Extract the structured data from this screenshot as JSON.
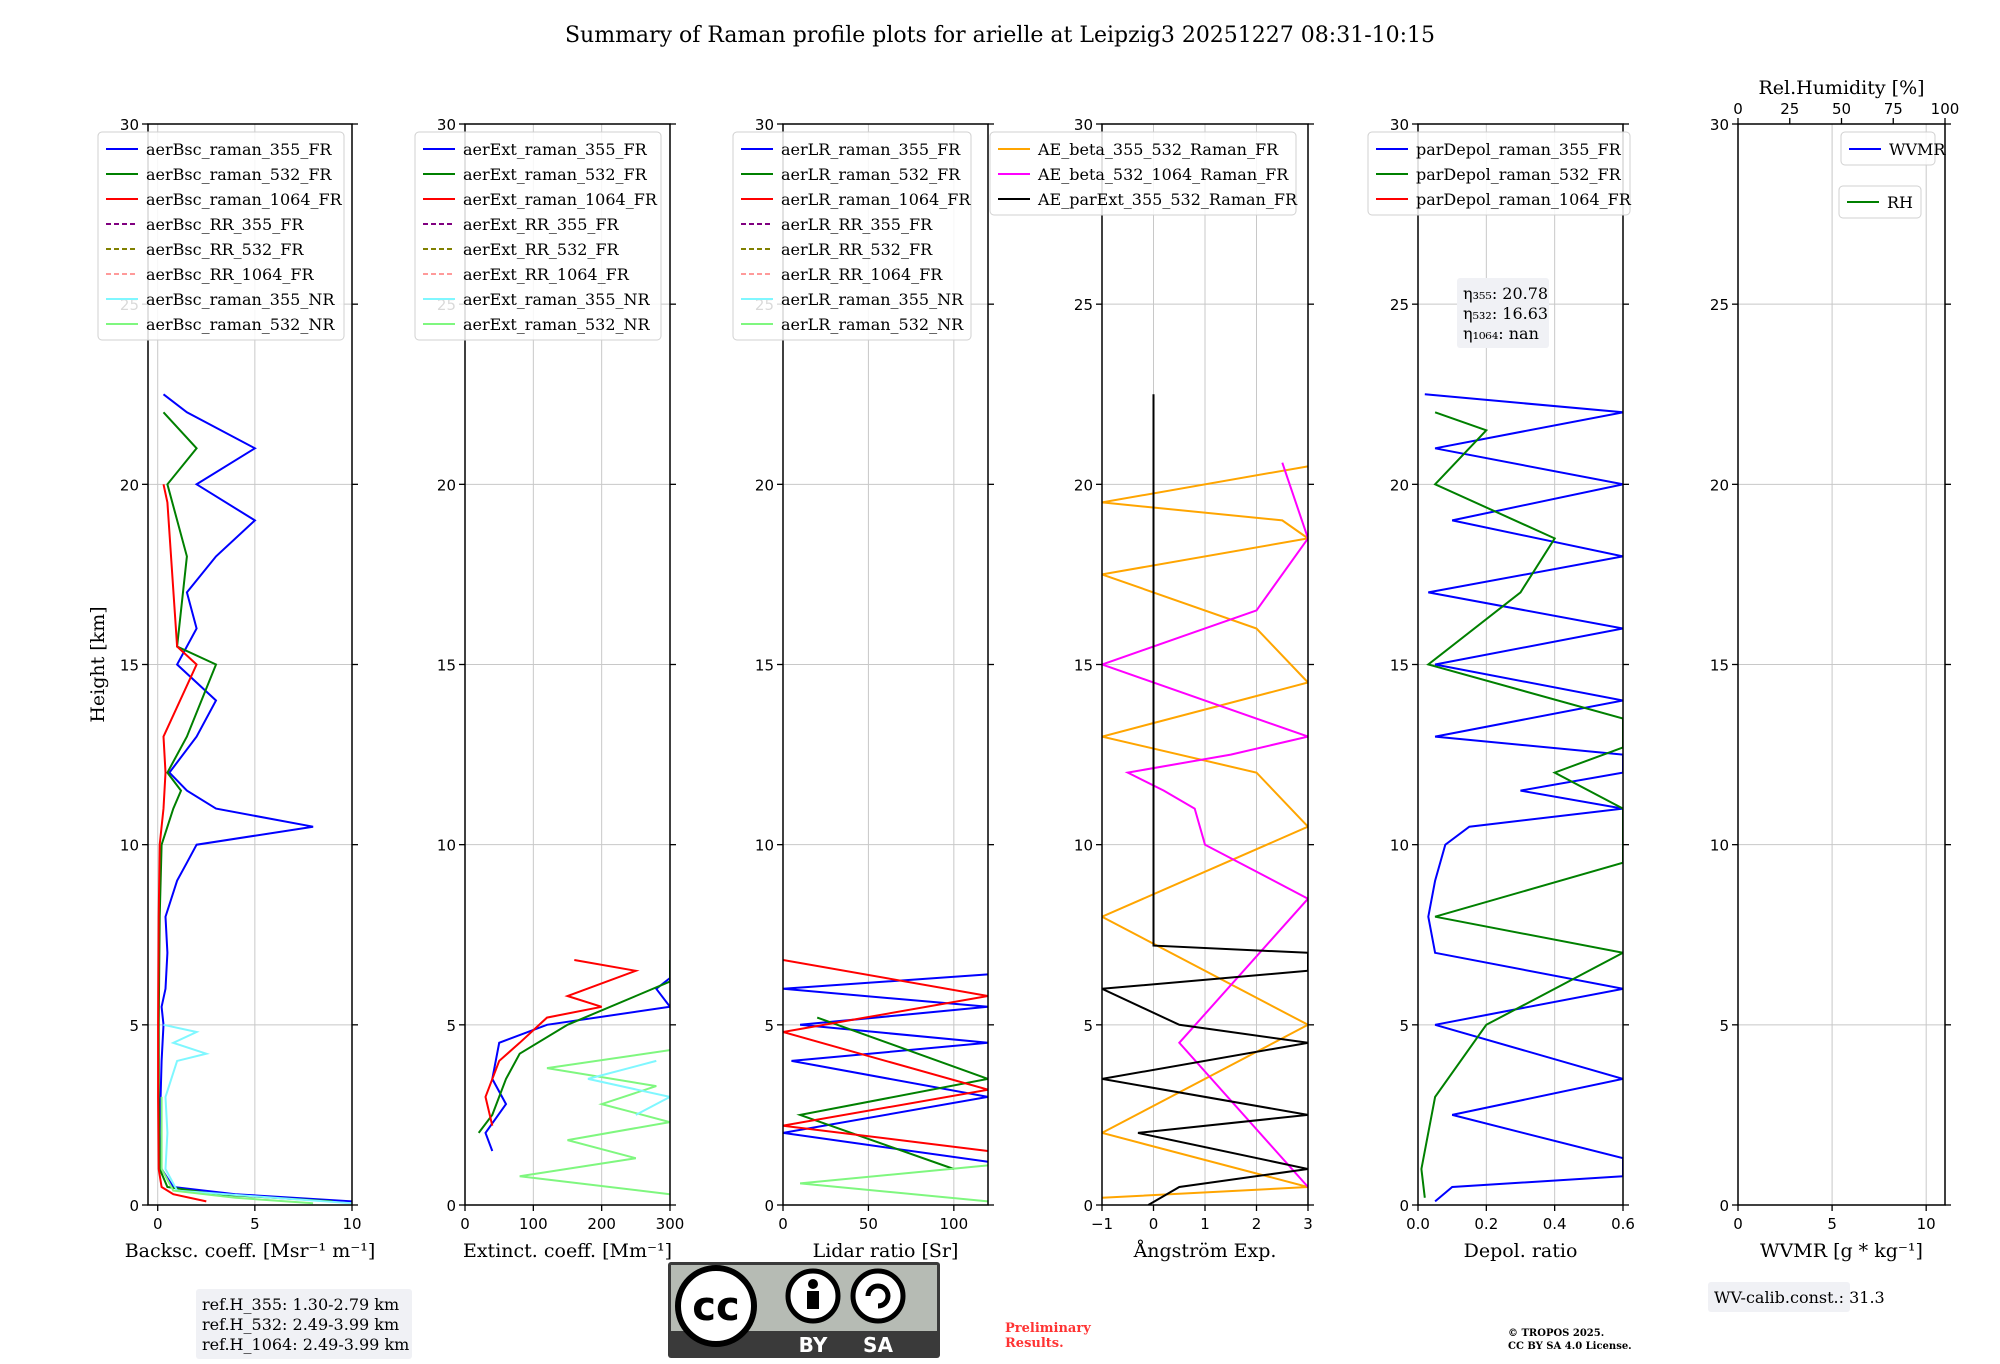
{
  "title": "Summary of Raman profile plots for arielle at Leipzig3 20251227 08:31-10:15",
  "colors": {
    "blue": "#0000ff",
    "green": "#008000",
    "red": "#ff0000",
    "purple": "#800080",
    "olive": "#808000",
    "salmon": "#ff9a9a",
    "cyan": "#7ff7ff",
    "lightgreen": "#7ff77f",
    "orange": "#ffa500",
    "magenta": "#ff00ff",
    "black": "#000000",
    "grid": "#c8c8c8",
    "preliminary": "#ff3333",
    "box": "#f0f1f5"
  },
  "chart_data": [
    {
      "id": "bsc",
      "type": "line",
      "xlabel": "Backsc. coeff. [Msr⁻¹ m⁻¹]",
      "ylabel": "Height [km]",
      "xlim": [
        -0.5,
        10
      ],
      "ylim": [
        0,
        30
      ],
      "xticks": [
        0,
        5,
        10
      ],
      "yticks": [
        0,
        5,
        10,
        15,
        20,
        25,
        30
      ],
      "legend": [
        "aerBsc_raman_355_FR",
        "aerBsc_raman_532_FR",
        "aerBsc_raman_1064_FR",
        "aerBsc_RR_355_FR",
        "aerBsc_RR_532_FR",
        "aerBsc_RR_1064_FR",
        "aerBsc_raman_355_NR",
        "aerBsc_raman_532_NR"
      ],
      "legend_colors": [
        "blue",
        "green",
        "red",
        "purple",
        "olive",
        "salmon",
        "cyan",
        "lightgreen"
      ],
      "legend_dashed": [
        false,
        false,
        false,
        true,
        true,
        true,
        false,
        false
      ],
      "legend_loc": "upper-left",
      "series": [
        {
          "name": "aerBsc_raman_355_FR",
          "color": "blue",
          "y": [
            0.1,
            0.3,
            0.5,
            1,
            2,
            3,
            4,
            5,
            5.5,
            6,
            7,
            8,
            9,
            9.5,
            10,
            10.5,
            11,
            11.5,
            12,
            13,
            14,
            15,
            16,
            17,
            18,
            19,
            20,
            21,
            22,
            22.5
          ],
          "x": [
            10,
            4,
            0.8,
            0.2,
            0.1,
            0.15,
            0.2,
            0.3,
            0.2,
            0.4,
            0.5,
            0.4,
            1.0,
            1.5,
            2.0,
            8.0,
            3.0,
            1.5,
            0.6,
            2.0,
            3.0,
            1.0,
            2.0,
            1.5,
            3.0,
            5.0,
            2.0,
            5.0,
            1.5,
            0.3
          ]
        },
        {
          "name": "aerBsc_raman_532_FR",
          "color": "green",
          "y": [
            0.1,
            0.3,
            0.5,
            1,
            3,
            5,
            8,
            10,
            11,
            11.5,
            12,
            13,
            15,
            15.5,
            18,
            20,
            21,
            22
          ],
          "x": [
            9,
            3,
            0.5,
            0.1,
            0.05,
            0.05,
            0.1,
            0.2,
            0.8,
            1.2,
            0.5,
            1.5,
            3.0,
            1.0,
            1.5,
            0.5,
            2.0,
            0.3
          ]
        },
        {
          "name": "aerBsc_raman_1064_FR",
          "color": "red",
          "y": [
            0.1,
            0.3,
            0.5,
            1,
            3,
            5,
            8,
            10,
            11,
            12,
            13,
            15,
            15.5,
            19.5,
            20
          ],
          "x": [
            2.5,
            0.8,
            0.2,
            0.05,
            0.02,
            0.02,
            0.05,
            0.1,
            0.3,
            0.4,
            0.3,
            2.0,
            1.0,
            0.5,
            0.3
          ]
        },
        {
          "name": "aerBsc_raman_355_NR",
          "color": "cyan",
          "y": [
            0.05,
            0.2,
            0.4,
            1,
            2,
            3,
            4,
            4.2,
            4.5,
            4.8,
            5
          ],
          "x": [
            10,
            6,
            1.0,
            0.4,
            0.5,
            0.4,
            1.0,
            2.5,
            0.8,
            2.0,
            0.3
          ]
        },
        {
          "name": "aerBsc_raman_532_NR",
          "color": "lightgreen",
          "y": [
            0.05,
            0.2,
            0.4,
            1,
            3
          ],
          "x": [
            8,
            4,
            0.8,
            0.2,
            0.2
          ]
        }
      ],
      "annotation": [
        "ref.H_355: 1.30-2.79 km",
        "ref.H_532: 2.49-3.99 km",
        "ref.H_1064: 2.49-3.99 km"
      ]
    },
    {
      "id": "ext",
      "type": "line",
      "xlabel": "Extinct. coeff. [Mm⁻¹]",
      "xlim": [
        0,
        300
      ],
      "ylim": [
        0,
        30
      ],
      "xticks": [
        0,
        100,
        200,
        300
      ],
      "yticks": [
        0,
        5,
        10,
        15,
        20,
        25,
        30
      ],
      "legend": [
        "aerExt_raman_355_FR",
        "aerExt_raman_532_FR",
        "aerExt_raman_1064_FR",
        "aerExt_RR_355_FR",
        "aerExt_RR_532_FR",
        "aerExt_RR_1064_FR",
        "aerExt_raman_355_NR",
        "aerExt_raman_532_NR"
      ],
      "legend_colors": [
        "blue",
        "green",
        "red",
        "purple",
        "olive",
        "salmon",
        "cyan",
        "lightgreen"
      ],
      "legend_dashed": [
        false,
        false,
        false,
        true,
        true,
        true,
        false,
        false
      ],
      "legend_loc": "upper-left",
      "series": [
        {
          "name": "aerExt_raman_532_NR",
          "color": "lightgreen",
          "y": [
            0.3,
            0.8,
            1.3,
            1.8,
            2.3,
            2.8,
            3.3,
            3.8,
            4.3
          ],
          "x": [
            300,
            80,
            250,
            150,
            300,
            200,
            280,
            120,
            300
          ]
        },
        {
          "name": "aerExt_raman_355_NR",
          "color": "cyan",
          "y": [
            2.5,
            3.0,
            3.5,
            4.0
          ],
          "x": [
            250,
            300,
            180,
            280
          ]
        },
        {
          "name": "aerExt_raman_355_FR",
          "color": "blue",
          "y": [
            1.5,
            2.0,
            2.8,
            3.5,
            4.5,
            5.0,
            5.5,
            6.0,
            6.3
          ],
          "x": [
            40,
            30,
            60,
            40,
            50,
            120,
            300,
            280,
            300
          ]
        },
        {
          "name": "aerExt_raman_532_FR",
          "color": "green",
          "y": [
            2.0,
            2.5,
            3.5,
            4.2,
            5.0,
            5.8,
            6.2,
            6.8
          ],
          "x": [
            20,
            40,
            60,
            80,
            150,
            250,
            300,
            300
          ]
        },
        {
          "name": "aerExt_raman_1064_FR",
          "color": "red",
          "y": [
            2.2,
            3.0,
            4.0,
            4.5,
            5.2,
            5.5,
            5.8,
            6.5,
            6.8
          ],
          "x": [
            40,
            30,
            50,
            80,
            120,
            200,
            150,
            250,
            160
          ]
        }
      ]
    },
    {
      "id": "lr",
      "type": "line",
      "xlabel": "Lidar ratio [Sr]",
      "xlim": [
        0,
        120
      ],
      "ylim": [
        0,
        30
      ],
      "xticks": [
        0,
        50,
        100
      ],
      "yticks": [
        0,
        5,
        10,
        15,
        20,
        25,
        30
      ],
      "legend": [
        "aerLR_raman_355_FR",
        "aerLR_raman_532_FR",
        "aerLR_raman_1064_FR",
        "aerLR_RR_355_FR",
        "aerLR_RR_532_FR",
        "aerLR_RR_1064_FR",
        "aerLR_raman_355_NR",
        "aerLR_raman_532_NR"
      ],
      "legend_colors": [
        "blue",
        "green",
        "red",
        "purple",
        "olive",
        "salmon",
        "cyan",
        "lightgreen"
      ],
      "legend_dashed": [
        false,
        false,
        false,
        true,
        true,
        true,
        false,
        false
      ],
      "legend_loc": "upper-left",
      "series": [
        {
          "name": "aerLR_raman_355_FR",
          "color": "blue",
          "y": [
            1.2,
            2.0,
            3.0,
            4.0,
            4.5,
            5.0,
            5.5,
            6.0,
            6.4
          ],
          "x": [
            120,
            0,
            120,
            5,
            120,
            10,
            120,
            0,
            120
          ]
        },
        {
          "name": "aerLR_raman_532_FR",
          "color": "green",
          "y": [
            1.0,
            2.5,
            3.5,
            5.2
          ],
          "x": [
            100,
            10,
            120,
            20
          ]
        },
        {
          "name": "aerLR_raman_1064_FR",
          "color": "red",
          "y": [
            1.5,
            2.2,
            3.2,
            4.8,
            5.8,
            6.8
          ],
          "x": [
            120,
            0,
            120,
            0,
            120,
            0
          ]
        },
        {
          "name": "aerLR_raman_532_NR",
          "color": "lightgreen",
          "y": [
            0.1,
            0.6,
            1.1
          ],
          "x": [
            120,
            10,
            120
          ]
        }
      ]
    },
    {
      "id": "ae",
      "type": "line",
      "xlabel": "Ångström Exp.",
      "xlim": [
        -1,
        3
      ],
      "ylim": [
        0,
        30
      ],
      "xticks": [
        -1,
        0,
        1,
        2,
        3
      ],
      "yticks": [
        0,
        5,
        10,
        15,
        20,
        25,
        30
      ],
      "legend": [
        "AE_beta_355_532_Raman_FR",
        "AE_beta_532_1064_Raman_FR",
        "AE_parExt_355_532_Raman_FR"
      ],
      "legend_colors": [
        "orange",
        "magenta",
        "black"
      ],
      "legend_dashed": [
        false,
        false,
        false
      ],
      "legend_loc": "upper-left",
      "series": [
        {
          "name": "AE_beta_355_532_Raman_FR",
          "color": "orange",
          "y": [
            0.2,
            0.5,
            2,
            5,
            8,
            10.5,
            12,
            13,
            14.5,
            16,
            17.5,
            18.5,
            19,
            19.5,
            20.5
          ],
          "x": [
            -1,
            3,
            -1,
            3,
            -1,
            3,
            2.0,
            -1,
            3,
            2.0,
            -1,
            3,
            2.5,
            -1,
            3
          ]
        },
        {
          "name": "AE_beta_532_1064_Raman_FR",
          "color": "magenta",
          "y": [
            0.5,
            4.5,
            8.5,
            10,
            11,
            11.5,
            12,
            12.5,
            13,
            15,
            16.5,
            18.5,
            20.6
          ],
          "x": [
            3,
            0.5,
            3,
            1.0,
            0.8,
            0.2,
            -0.5,
            1.5,
            3,
            -1,
            2,
            3,
            2.5
          ]
        },
        {
          "name": "AE_parExt_355_532_Raman_FR",
          "color": "black",
          "y": [
            0,
            0.5,
            1,
            2,
            2.5,
            3.5,
            4.5,
            5,
            6,
            6.5,
            7,
            7.2,
            22.5
          ],
          "x": [
            -0.1,
            0.5,
            3,
            -0.3,
            3,
            -1,
            3,
            0.5,
            -1,
            3,
            3,
            0,
            0
          ]
        }
      ]
    },
    {
      "id": "depol",
      "type": "line",
      "xlabel": "Depol. ratio",
      "xlim": [
        0,
        0.6
      ],
      "ylim": [
        0,
        30
      ],
      "xticks": [
        0.0,
        0.2,
        0.4,
        0.6
      ],
      "yticks": [
        0,
        5,
        10,
        15,
        20,
        25,
        30
      ],
      "xtick_labels": [
        "0.0",
        "0.2",
        "0.4",
        "0.6"
      ],
      "legend": [
        "parDepol_raman_355_FR",
        "parDepol_raman_532_FR",
        "parDepol_raman_1064_FR"
      ],
      "legend_colors": [
        "blue",
        "green",
        "red"
      ],
      "legend_dashed": [
        false,
        false,
        false
      ],
      "legend_loc": "upper-left",
      "series": [
        {
          "name": "parDepol_raman_355_FR",
          "color": "blue",
          "y": [
            0.1,
            0.5,
            0.8,
            1.3,
            2.5,
            3.5,
            5,
            6,
            7,
            8,
            9,
            10,
            10.5,
            11,
            11.5,
            12,
            12.5,
            13,
            14,
            15,
            16,
            17,
            18,
            19,
            20,
            21,
            22,
            22.5
          ],
          "x": [
            0.05,
            0.1,
            0.6,
            0.6,
            0.1,
            0.6,
            0.05,
            0.6,
            0.05,
            0.03,
            0.05,
            0.08,
            0.15,
            0.6,
            0.3,
            0.6,
            0.6,
            0.05,
            0.6,
            0.05,
            0.6,
            0.03,
            0.6,
            0.1,
            0.6,
            0.05,
            0.6,
            0.02
          ]
        },
        {
          "name": "parDepol_raman_532_FR",
          "color": "green",
          "y": [
            0.2,
            1,
            3,
            5,
            7,
            8,
            9.5,
            11,
            12,
            12.7,
            13.5,
            15,
            17,
            18.5,
            20,
            21.5,
            22
          ],
          "x": [
            0.02,
            0.01,
            0.05,
            0.2,
            0.6,
            0.05,
            0.6,
            0.6,
            0.4,
            0.6,
            0.6,
            0.03,
            0.3,
            0.4,
            0.05,
            0.2,
            0.05
          ]
        }
      ],
      "annotation": [
        "η₃₅₅: 20.78",
        "η₅₃₂: 16.63",
        "η₁₀₆₄: nan"
      ]
    },
    {
      "id": "wv",
      "type": "line",
      "xlabel": "WVMR [g * kg⁻¹]",
      "top_xlabel": "Rel.Humidity [%]",
      "xlim": [
        0,
        11
      ],
      "ylim": [
        0,
        30
      ],
      "xticks": [
        0,
        5,
        10
      ],
      "yticks": [
        0,
        5,
        10,
        15,
        20,
        25,
        30
      ],
      "top_xlim": [
        0,
        100
      ],
      "top_xticks": [
        0,
        25,
        50,
        75,
        100
      ],
      "legend": [
        "WVMR"
      ],
      "legend_colors": [
        "blue"
      ],
      "legend_dashed": [
        false
      ],
      "legend_loc": "upper-right",
      "legend2": [
        "RH"
      ],
      "legend2_colors": [
        "green"
      ],
      "series": [],
      "annotation": [
        "WV-calib.const.: 31.3"
      ]
    }
  ],
  "footer": {
    "preliminary": [
      "Preliminary",
      "Results."
    ],
    "copyright": [
      "© TROPOS 2025.",
      "CC BY SA 4.0 License."
    ],
    "license_badge": [
      "cc",
      "BY",
      "SA"
    ]
  }
}
